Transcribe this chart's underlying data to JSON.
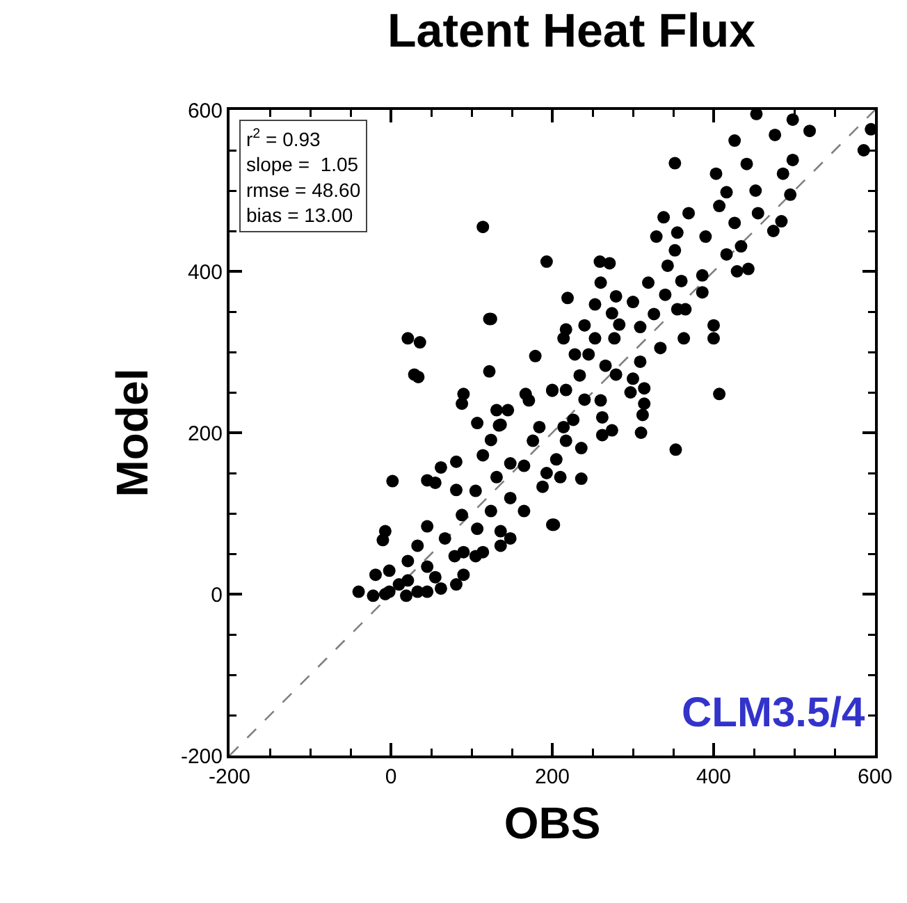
{
  "chart_data": {
    "type": "scatter",
    "title": "Latent Heat Flux",
    "xlabel": "OBS",
    "ylabel": "Model",
    "annotations": [
      "r$^{2}$ = 0.93\nslope =  1.05\nrmse = 48.60\nbias = 13.00",
      "CLM3.5/4"
    ],
    "xlim": [
      -200,
      600
    ],
    "ylim": [
      -200,
      600
    ],
    "xticks": [
      -200,
      0,
      200,
      400,
      600
    ],
    "yticks": [
      -200,
      0,
      200,
      400,
      600
    ],
    "grid": false,
    "marker": "circle",
    "series": [
      {
        "color": "#000000",
        "x": [
          114,
          21,
          34,
          122,
          193,
          124,
          36,
          29,
          179,
          122,
          453,
          498,
          519,
          595,
          586,
          426,
          476,
          352,
          441,
          403,
          498,
          486,
          452,
          416,
          495,
          338,
          369,
          329,
          355,
          407,
          426,
          455,
          484,
          474,
          390,
          434,
          352,
          416,
          343,
          429,
          443,
          259,
          271,
          260,
          319,
          360,
          386,
          386,
          219,
          279,
          300,
          340,
          253,
          274,
          326,
          355,
          365,
          217,
          240,
          283,
          309,
          214,
          253,
          277,
          334,
          363,
          400,
          400,
          228,
          245,
          266,
          309,
          234,
          279,
          300,
          200,
          217,
          240,
          260,
          297,
          314,
          314,
          407,
          226,
          262,
          312,
          107,
          134,
          184,
          176,
          124,
          114,
          81,
          62,
          2,
          45,
          55,
          81,
          105,
          148,
          165,
          193,
          188,
          131,
          148,
          165,
          200,
          136,
          148,
          136,
          88,
          107,
          45,
          -7,
          -10,
          67,
          33,
          105,
          90,
          81,
          62,
          -40,
          -22,
          -2,
          21,
          45,
          10,
          33,
          -7,
          -19,
          55,
          21,
          -2,
          19,
          45,
          79,
          124,
          114,
          90,
          214,
          262,
          274,
          310,
          353,
          236,
          217,
          205,
          210,
          236,
          202,
          90,
          88,
          131,
          145,
          167,
          171,
          200,
          136
        ],
        "values": [
          455,
          317,
          269,
          341,
          412,
          341,
          312,
          272,
          295,
          276,
          595,
          588,
          574,
          576,
          550,
          562,
          569,
          534,
          533,
          521,
          538,
          521,
          500,
          498,
          495,
          467,
          472,
          443,
          448,
          481,
          460,
          472,
          462,
          450,
          443,
          431,
          426,
          421,
          407,
          400,
          403,
          412,
          410,
          386,
          386,
          388,
          395,
          374,
          367,
          369,
          362,
          371,
          359,
          348,
          347,
          353,
          353,
          328,
          333,
          334,
          331,
          317,
          317,
          317,
          305,
          317,
          333,
          317,
          297,
          297,
          283,
          288,
          271,
          272,
          267,
          253,
          253,
          241,
          240,
          250,
          255,
          236,
          248,
          216,
          219,
          222,
          212,
          209,
          207,
          190,
          191,
          172,
          164,
          157,
          140,
          141,
          138,
          129,
          128,
          162,
          159,
          150,
          133,
          145,
          119,
          103,
          86,
          78,
          69,
          60,
          98,
          81,
          84,
          78,
          67,
          69,
          60,
          47,
          24,
          12,
          7,
          3,
          -2,
          29,
          41,
          34,
          12,
          3,
          0,
          24,
          21,
          17,
          3,
          -2,
          3,
          47,
          103,
          52,
          52,
          207,
          197,
          203,
          200,
          179,
          181,
          190,
          167,
          145,
          143,
          86,
          248,
          236,
          228,
          228,
          248,
          240,
          252,
          210
        ]
      },
      {
        "type": "line",
        "color": "#808080",
        "line_style": "dashed",
        "marker": "none",
        "x": [
          -200,
          600
        ],
        "values": [
          -200,
          600
        ]
      }
    ]
  }
}
